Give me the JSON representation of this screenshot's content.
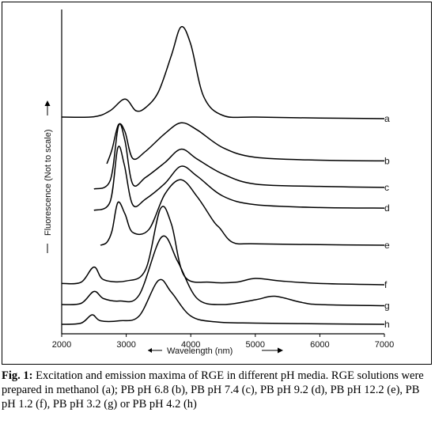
{
  "caption": {
    "label": "Fig. 1:",
    "text": "Excitation and emission maxima of RGE in different pH media. RGE solutions were prepared in methanol (a); PB pH 6.8 (b), PB pH 7.4 (c), PB pH 9.2 (d), PB pH 12.2 (e), PB pH 1.2 (f), PB pH 3.2 (g) or PB pH 4.2 (h)"
  },
  "chart_data": {
    "type": "line",
    "title": "",
    "xlabel": "Wavelength (nm)",
    "ylabel": "Fluorescence (Not to scale)",
    "xlim": [
      2000,
      7000
    ],
    "x_ticks": [
      "2000",
      "3000",
      "4000",
      "5000",
      "6000",
      "7000"
    ],
    "grid": false,
    "legend": "series labels at right end of each curve",
    "series": [
      {
        "name": "a",
        "points": [
          [
            2000,
            0.25
          ],
          [
            2500,
            0.26
          ],
          [
            2750,
            0.45
          ],
          [
            2980,
            0.82
          ],
          [
            3150,
            0.45
          ],
          [
            3300,
            0.55
          ],
          [
            3500,
            1.05
          ],
          [
            3700,
            2.2
          ],
          [
            3850,
            3.1
          ],
          [
            4000,
            2.55
          ],
          [
            4200,
            0.9
          ],
          [
            4500,
            0.3
          ],
          [
            5000,
            0.25
          ],
          [
            6000,
            0.22
          ],
          [
            7000,
            0.2
          ]
        ]
      },
      {
        "name": "b",
        "points": [
          [
            2700,
            0
          ],
          [
            2780,
            0.4
          ],
          [
            2880,
            1.1
          ],
          [
            2980,
            0.9
          ],
          [
            3100,
            0.15
          ],
          [
            3300,
            0.35
          ],
          [
            3600,
            0.85
          ],
          [
            3850,
            1.15
          ],
          [
            4100,
            0.95
          ],
          [
            4500,
            0.45
          ],
          [
            5000,
            0.18
          ],
          [
            6000,
            0.1
          ],
          [
            7000,
            0.08
          ]
        ]
      },
      {
        "name": "c",
        "points": [
          [
            2500,
            0
          ],
          [
            2750,
            0.25
          ],
          [
            2880,
            1.9
          ],
          [
            2980,
            1.45
          ],
          [
            3100,
            0.15
          ],
          [
            3300,
            0.35
          ],
          [
            3600,
            0.8
          ],
          [
            3850,
            1.2
          ],
          [
            4100,
            0.9
          ],
          [
            4500,
            0.45
          ],
          [
            5000,
            0.15
          ],
          [
            6000,
            0.08
          ],
          [
            7000,
            0.05
          ]
        ]
      },
      {
        "name": "d",
        "points": [
          [
            2500,
            0
          ],
          [
            2750,
            0.3
          ],
          [
            2870,
            2.2
          ],
          [
            2970,
            1.6
          ],
          [
            3100,
            0.2
          ],
          [
            3300,
            0.4
          ],
          [
            3600,
            0.95
          ],
          [
            3850,
            1.55
          ],
          [
            4100,
            1.2
          ],
          [
            4500,
            0.5
          ],
          [
            5000,
            0.2
          ],
          [
            6000,
            0.1
          ],
          [
            7000,
            0.08
          ]
        ]
      },
      {
        "name": "e",
        "points": [
          [
            2600,
            0
          ],
          [
            2700,
            0.1
          ],
          [
            2780,
            0.5
          ],
          [
            2870,
            1.5
          ],
          [
            2980,
            1.1
          ],
          [
            3100,
            0.45
          ],
          [
            3350,
            0.55
          ],
          [
            3600,
            1.8
          ],
          [
            3850,
            2.3
          ],
          [
            4100,
            1.7
          ],
          [
            4350,
            0.85
          ],
          [
            4450,
            0.6
          ],
          [
            4650,
            0.1
          ],
          [
            5000,
            0.05
          ],
          [
            6000,
            0.02
          ],
          [
            7000,
            0.0
          ]
        ]
      },
      {
        "name": "f",
        "points": [
          [
            2000,
            0.05
          ],
          [
            2300,
            0.1
          ],
          [
            2500,
            0.7
          ],
          [
            2650,
            0.2
          ],
          [
            3000,
            0.15
          ],
          [
            3300,
            0.6
          ],
          [
            3530,
            3.0
          ],
          [
            3700,
            2.4
          ],
          [
            3900,
            0.35
          ],
          [
            4300,
            0.1
          ],
          [
            4700,
            0.1
          ],
          [
            5000,
            0.25
          ],
          [
            5400,
            0.15
          ],
          [
            6000,
            0.05
          ],
          [
            7000,
            0.0
          ]
        ]
      },
      {
        "name": "g",
        "points": [
          [
            2000,
            0.1
          ],
          [
            2300,
            0.15
          ],
          [
            2500,
            0.65
          ],
          [
            2650,
            0.35
          ],
          [
            2900,
            0.25
          ],
          [
            3200,
            0.5
          ],
          [
            3550,
            2.95
          ],
          [
            3800,
            1.9
          ],
          [
            4100,
            0.35
          ],
          [
            4500,
            0.1
          ],
          [
            5000,
            0.3
          ],
          [
            5300,
            0.45
          ],
          [
            5700,
            0.2
          ],
          [
            6000,
            0.1
          ],
          [
            7000,
            0.05
          ]
        ]
      },
      {
        "name": "h",
        "points": [
          [
            2000,
            0.0
          ],
          [
            2300,
            0.05
          ],
          [
            2470,
            0.4
          ],
          [
            2600,
            0.15
          ],
          [
            2900,
            0.15
          ],
          [
            3200,
            0.35
          ],
          [
            3500,
            1.85
          ],
          [
            3700,
            1.35
          ],
          [
            4000,
            0.35
          ],
          [
            4400,
            0.1
          ],
          [
            5000,
            0.05
          ],
          [
            6000,
            0.02
          ],
          [
            7000,
            0.0
          ]
        ]
      }
    ]
  }
}
